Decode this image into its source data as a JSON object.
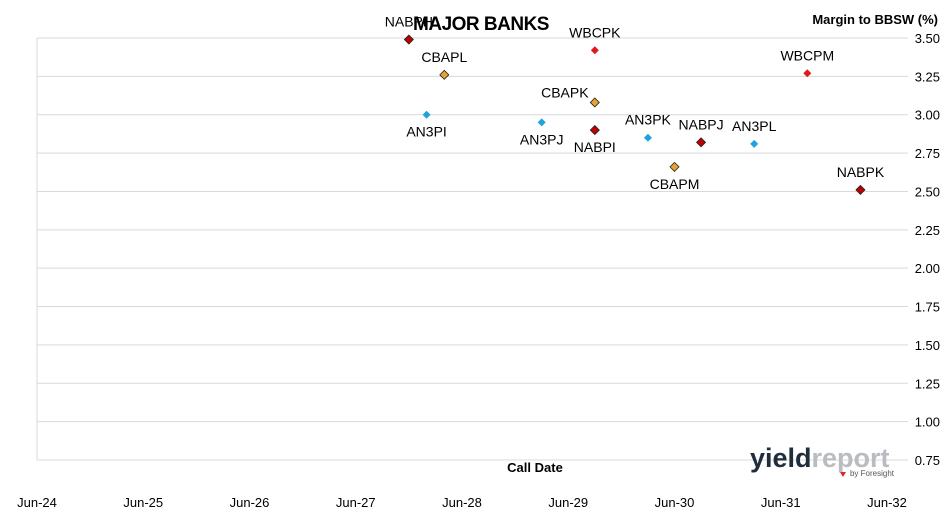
{
  "chart_data": {
    "type": "scatter",
    "title": "MAJOR BANKS",
    "xlabel": "Call Date",
    "ylabel": "Margin to BBSW (%)",
    "ylim": [
      0.75,
      3.5
    ],
    "y_ticks": [
      "3.50",
      "3.25",
      "3.00",
      "2.75",
      "2.50",
      "2.25",
      "2.00",
      "1.75",
      "1.50",
      "1.25",
      "1.00",
      "0.75"
    ],
    "x_ticks": [
      "Jun-24",
      "Jun-25",
      "Jun-26",
      "Jun-27",
      "Jun-28",
      "Jun-29",
      "Jun-30",
      "Jun-31",
      "Jun-32"
    ],
    "grid": "horizontal",
    "points": [
      {
        "label": "NABPH",
        "x": "2027-12",
        "y": 3.49,
        "bank": "NAB",
        "label_pos": "above"
      },
      {
        "label": "CBAPL",
        "x": "2028-04",
        "y": 3.26,
        "bank": "CBA",
        "label_pos": "above"
      },
      {
        "label": "AN3PI",
        "x": "2028-02",
        "y": 3.0,
        "bank": "ANZ",
        "label_pos": "below"
      },
      {
        "label": "WBCPK",
        "x": "2029-09",
        "y": 3.42,
        "bank": "WBC",
        "label_pos": "above"
      },
      {
        "label": "CBAPK",
        "x": "2029-09",
        "y": 3.08,
        "bank": "CBA",
        "label_pos": "above-left"
      },
      {
        "label": "AN3PJ",
        "x": "2029-03",
        "y": 2.95,
        "bank": "ANZ",
        "label_pos": "below"
      },
      {
        "label": "NABPI",
        "x": "2029-09",
        "y": 2.9,
        "bank": "NAB",
        "label_pos": "below"
      },
      {
        "label": "AN3PK",
        "x": "2030-03",
        "y": 2.85,
        "bank": "ANZ",
        "label_pos": "above"
      },
      {
        "label": "NABPJ",
        "x": "2030-09",
        "y": 2.82,
        "bank": "NAB",
        "label_pos": "above"
      },
      {
        "label": "CBAPM",
        "x": "2030-06",
        "y": 2.66,
        "bank": "CBA",
        "label_pos": "below"
      },
      {
        "label": "AN3PL",
        "x": "2031-03",
        "y": 2.81,
        "bank": "ANZ",
        "label_pos": "above"
      },
      {
        "label": "WBCPM",
        "x": "2031-09",
        "y": 3.27,
        "bank": "WBC",
        "label_pos": "above"
      },
      {
        "label": "NABPK",
        "x": "2032-03",
        "y": 2.51,
        "bank": "NAB",
        "label_pos": "above"
      }
    ],
    "colors": {
      "NAB": "#c00000",
      "CBA": "#e6a32e",
      "ANZ": "#1fa3dc",
      "WBC": "#e0191f"
    }
  },
  "logo": {
    "text_yield": "yield",
    "text_report": "report",
    "text_by": "by Foresight",
    "color_yield": "#1f2d3d",
    "color_report": "#b9bcc0",
    "color_by": "#d92b2b"
  }
}
